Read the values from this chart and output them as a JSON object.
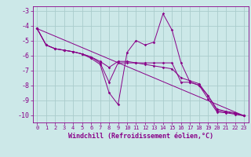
{
  "background_color": "#cce8e8",
  "line_color": "#880088",
  "grid_color": "#aacccc",
  "xlabel": "Windchill (Refroidissement éolien,°C)",
  "xlabel_color": "#880088",
  "tick_color": "#880088",
  "ylim": [
    -10.5,
    -2.7
  ],
  "xlim": [
    -0.5,
    23.5
  ],
  "yticks": [
    -10,
    -9,
    -8,
    -7,
    -6,
    -5,
    -4,
    -3
  ],
  "xticks": [
    0,
    1,
    2,
    3,
    4,
    5,
    6,
    7,
    8,
    9,
    10,
    11,
    12,
    13,
    14,
    15,
    16,
    17,
    18,
    19,
    20,
    21,
    22,
    23
  ],
  "curves": [
    {
      "x": [
        0,
        1,
        2,
        3,
        4,
        5,
        6,
        7,
        8,
        9,
        10,
        11,
        12,
        13,
        14,
        15,
        16,
        17,
        18,
        19,
        20,
        21,
        22,
        23
      ],
      "y": [
        -4.2,
        -5.3,
        -5.55,
        -5.65,
        -5.75,
        -5.9,
        -6.2,
        -6.6,
        -8.5,
        -9.3,
        -5.8,
        -5.0,
        -5.3,
        -5.1,
        -3.2,
        -4.3,
        -6.5,
        -7.8,
        -8.0,
        -8.9,
        -9.8,
        -9.85,
        -9.95,
        -10.05
      ]
    },
    {
      "x": [
        0,
        23
      ],
      "y": [
        -4.2,
        -10.05
      ]
    },
    {
      "x": [
        0,
        1,
        2,
        3,
        4,
        5,
        6,
        7,
        8,
        9,
        10,
        11,
        12,
        13,
        14,
        15,
        16,
        17,
        18,
        19,
        20,
        21,
        22,
        23
      ],
      "y": [
        -4.2,
        -5.3,
        -5.55,
        -5.65,
        -5.75,
        -5.9,
        -6.1,
        -6.5,
        -7.8,
        -6.5,
        -6.5,
        -6.5,
        -6.5,
        -6.5,
        -6.5,
        -6.5,
        -7.8,
        -7.8,
        -8.0,
        -8.7,
        -9.7,
        -9.8,
        -9.9,
        -10.05
      ]
    },
    {
      "x": [
        0,
        1,
        2,
        3,
        4,
        5,
        6,
        7,
        8,
        9,
        10,
        11,
        12,
        13,
        14,
        15,
        16,
        17,
        18,
        19,
        20,
        21,
        22,
        23
      ],
      "y": [
        -4.2,
        -5.3,
        -5.55,
        -5.65,
        -5.75,
        -5.9,
        -6.1,
        -6.4,
        -6.8,
        -6.4,
        -6.4,
        -6.5,
        -6.6,
        -6.7,
        -6.8,
        -6.9,
        -7.5,
        -7.7,
        -7.9,
        -8.7,
        -9.6,
        -9.75,
        -9.85,
        -10.05
      ]
    }
  ]
}
